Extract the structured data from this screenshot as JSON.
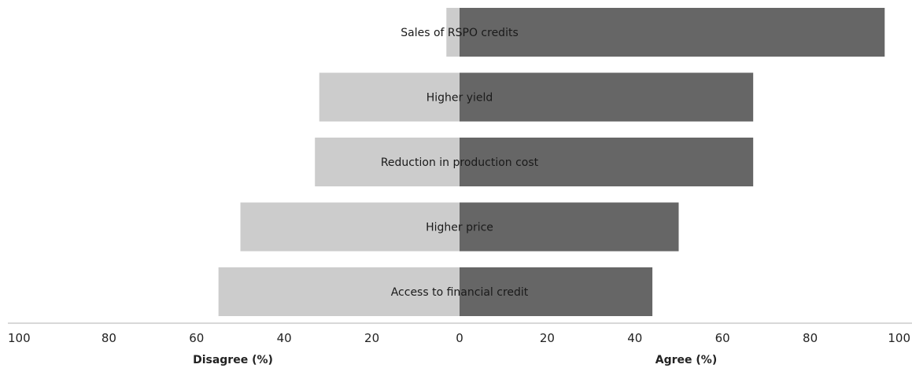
{
  "chart_data": {
    "type": "bar",
    "orientation": "horizontal-diverging",
    "categories": [
      "Sales of RSPO credits",
      "Higher yield",
      "Reduction in production cost",
      "Higher price",
      "Access to financial credit"
    ],
    "series": [
      {
        "name": "Disagree (%)",
        "values": [
          3,
          32,
          33,
          50,
          55
        ],
        "color": "#cccccc"
      },
      {
        "name": "Agree (%)",
        "values": [
          97,
          67,
          67,
          50,
          44
        ],
        "color": "#666666"
      }
    ],
    "xlim": [
      -100,
      100
    ],
    "ticks": [
      {
        "value": -100,
        "label": "100"
      },
      {
        "value": -80,
        "label": "80"
      },
      {
        "value": -60,
        "label": "60"
      },
      {
        "value": -40,
        "label": "40"
      },
      {
        "value": -20,
        "label": "20"
      },
      {
        "value": 0,
        "label": "0"
      },
      {
        "value": 20,
        "label": "20"
      },
      {
        "value": 40,
        "label": "40"
      },
      {
        "value": 60,
        "label": "60"
      },
      {
        "value": 80,
        "label": "80"
      },
      {
        "value": 100,
        "label": "100"
      }
    ],
    "xlabel_left": "Disagree (%)",
    "xlabel_right": "Agree (%)",
    "grid": false,
    "legend": "none"
  }
}
